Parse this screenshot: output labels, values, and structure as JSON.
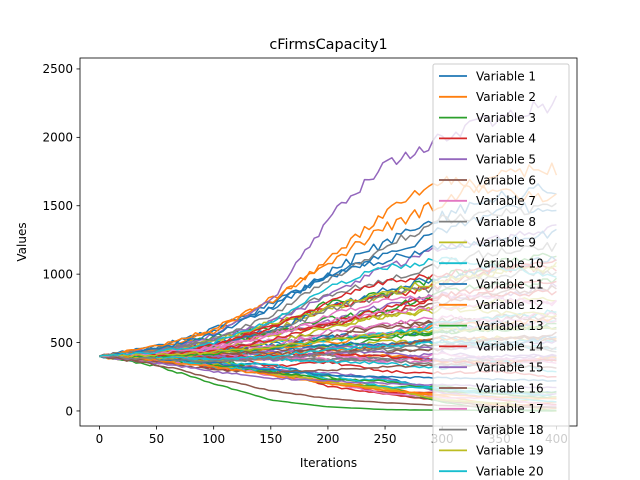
{
  "chart_data": {
    "type": "line",
    "title": "cFirmsCapacity1",
    "xlabel": "Iterations",
    "ylabel": "Values",
    "xlim": [
      -17,
      418
    ],
    "ylim": [
      -110,
      2580
    ],
    "xticks": [
      0,
      50,
      100,
      150,
      200,
      250,
      300,
      350,
      400
    ],
    "yticks": [
      0,
      500,
      1000,
      1500,
      2000,
      2500
    ],
    "x_range": [
      0,
      400
    ],
    "start_value": 400,
    "grid": false,
    "legend_position": "top-right",
    "visible_series_count": 20,
    "palette": [
      "#1f77b4",
      "#ff7f0e",
      "#2ca02c",
      "#d62728",
      "#9467bd",
      "#8c564b",
      "#e377c2",
      "#7f7f7f",
      "#bcbd22",
      "#17becf"
    ],
    "series": [
      {
        "name": "Variable 1",
        "color": "#1f77b4",
        "x": [
          0,
          50,
          100,
          150,
          200,
          250,
          300,
          350,
          400
        ],
        "values": [
          400,
          380,
          350,
          300,
          260,
          250,
          240,
          230,
          220
        ]
      },
      {
        "name": "Variable 2",
        "color": "#ff7f0e",
        "x": [
          0,
          50,
          100,
          150,
          200,
          250,
          300,
          350,
          400
        ],
        "values": [
          400,
          470,
          600,
          800,
          1100,
          1450,
          1700,
          1600,
          1550
        ]
      },
      {
        "name": "Variable 3",
        "color": "#2ca02c",
        "x": [
          0,
          50,
          100,
          150,
          200,
          250,
          300,
          350,
          400
        ],
        "values": [
          400,
          330,
          200,
          80,
          30,
          10,
          5,
          5,
          5
        ]
      },
      {
        "name": "Variable 4",
        "color": "#d62728",
        "x": [
          0,
          50,
          100,
          150,
          200,
          250,
          300,
          350,
          400
        ],
        "values": [
          400,
          420,
          480,
          600,
          800,
          950,
          1000,
          1050,
          1100
        ]
      },
      {
        "name": "Variable 5",
        "color": "#9467bd",
        "x": [
          0,
          50,
          100,
          150,
          200,
          250,
          300,
          350,
          400
        ],
        "values": [
          400,
          430,
          550,
          800,
          1400,
          1800,
          2000,
          2150,
          2250
        ]
      },
      {
        "name": "Variable 6",
        "color": "#8c564b",
        "x": [
          0,
          50,
          100,
          150,
          200,
          250,
          300,
          350,
          400
        ],
        "values": [
          400,
          360,
          300,
          280,
          300,
          320,
          340,
          330,
          320
        ]
      },
      {
        "name": "Variable 7",
        "color": "#e377c2",
        "x": [
          0,
          50,
          100,
          150,
          200,
          250,
          300,
          350,
          400
        ],
        "values": [
          400,
          410,
          450,
          550,
          700,
          800,
          850,
          820,
          800
        ]
      },
      {
        "name": "Variable 8",
        "color": "#7f7f7f",
        "x": [
          0,
          50,
          100,
          150,
          200,
          250,
          300,
          350,
          400
        ],
        "values": [
          400,
          440,
          520,
          700,
          950,
          1200,
          1400,
          1450,
          1500
        ]
      },
      {
        "name": "Variable 9",
        "color": "#bcbd22",
        "x": [
          0,
          50,
          100,
          150,
          200,
          250,
          300,
          350,
          400
        ],
        "values": [
          400,
          380,
          420,
          500,
          600,
          700,
          750,
          720,
          700
        ]
      },
      {
        "name": "Variable 10",
        "color": "#17becf",
        "x": [
          0,
          50,
          100,
          150,
          200,
          250,
          300,
          350,
          400
        ],
        "values": [
          400,
          390,
          380,
          400,
          450,
          480,
          500,
          480,
          460
        ]
      },
      {
        "name": "Variable 11",
        "color": "#1f77b4",
        "x": [
          0,
          50,
          100,
          150,
          200,
          250,
          300,
          350,
          400
        ],
        "values": [
          400,
          450,
          560,
          750,
          1000,
          1100,
          1200,
          1250,
          1300
        ]
      },
      {
        "name": "Variable 12",
        "color": "#ff7f0e",
        "x": [
          0,
          50,
          100,
          150,
          200,
          250,
          300,
          350,
          400
        ],
        "values": [
          400,
          370,
          320,
          260,
          200,
          150,
          120,
          100,
          90
        ]
      },
      {
        "name": "Variable 13",
        "color": "#2ca02c",
        "x": [
          0,
          50,
          100,
          150,
          200,
          250,
          300,
          350,
          400
        ],
        "values": [
          400,
          400,
          420,
          460,
          520,
          560,
          580,
          600,
          610
        ]
      },
      {
        "name": "Variable 14",
        "color": "#d62728",
        "x": [
          0,
          50,
          100,
          150,
          200,
          250,
          300,
          350,
          400
        ],
        "values": [
          400,
          410,
          440,
          520,
          640,
          750,
          850,
          900,
          950
        ]
      },
      {
        "name": "Variable 15",
        "color": "#9467bd",
        "x": [
          0,
          50,
          100,
          150,
          200,
          250,
          300,
          350,
          400
        ],
        "values": [
          400,
          350,
          290,
          240,
          220,
          200,
          190,
          180,
          170
        ]
      },
      {
        "name": "Variable 16",
        "color": "#8c564b",
        "x": [
          0,
          50,
          100,
          150,
          200,
          250,
          300,
          350,
          400
        ],
        "values": [
          400,
          340,
          240,
          150,
          90,
          60,
          40,
          30,
          25
        ]
      },
      {
        "name": "Variable 17",
        "color": "#e377c2",
        "x": [
          0,
          50,
          100,
          150,
          200,
          250,
          300,
          350,
          400
        ],
        "values": [
          400,
          420,
          470,
          560,
          660,
          720,
          760,
          780,
          790
        ]
      },
      {
        "name": "Variable 18",
        "color": "#7f7f7f",
        "x": [
          0,
          50,
          100,
          150,
          200,
          250,
          300,
          350,
          400
        ],
        "values": [
          400,
          380,
          360,
          380,
          420,
          460,
          480,
          470,
          460
        ]
      },
      {
        "name": "Variable 19",
        "color": "#bcbd22",
        "x": [
          0,
          50,
          100,
          150,
          200,
          250,
          300,
          350,
          400
        ],
        "values": [
          400,
          410,
          430,
          470,
          520,
          560,
          590,
          600,
          610
        ]
      },
      {
        "name": "Variable 20",
        "color": "#17becf",
        "x": [
          0,
          50,
          100,
          150,
          200,
          250,
          300,
          350,
          400
        ],
        "values": [
          400,
          430,
          500,
          650,
          900,
          1050,
          1100,
          1050,
          1000
        ]
      }
    ]
  }
}
